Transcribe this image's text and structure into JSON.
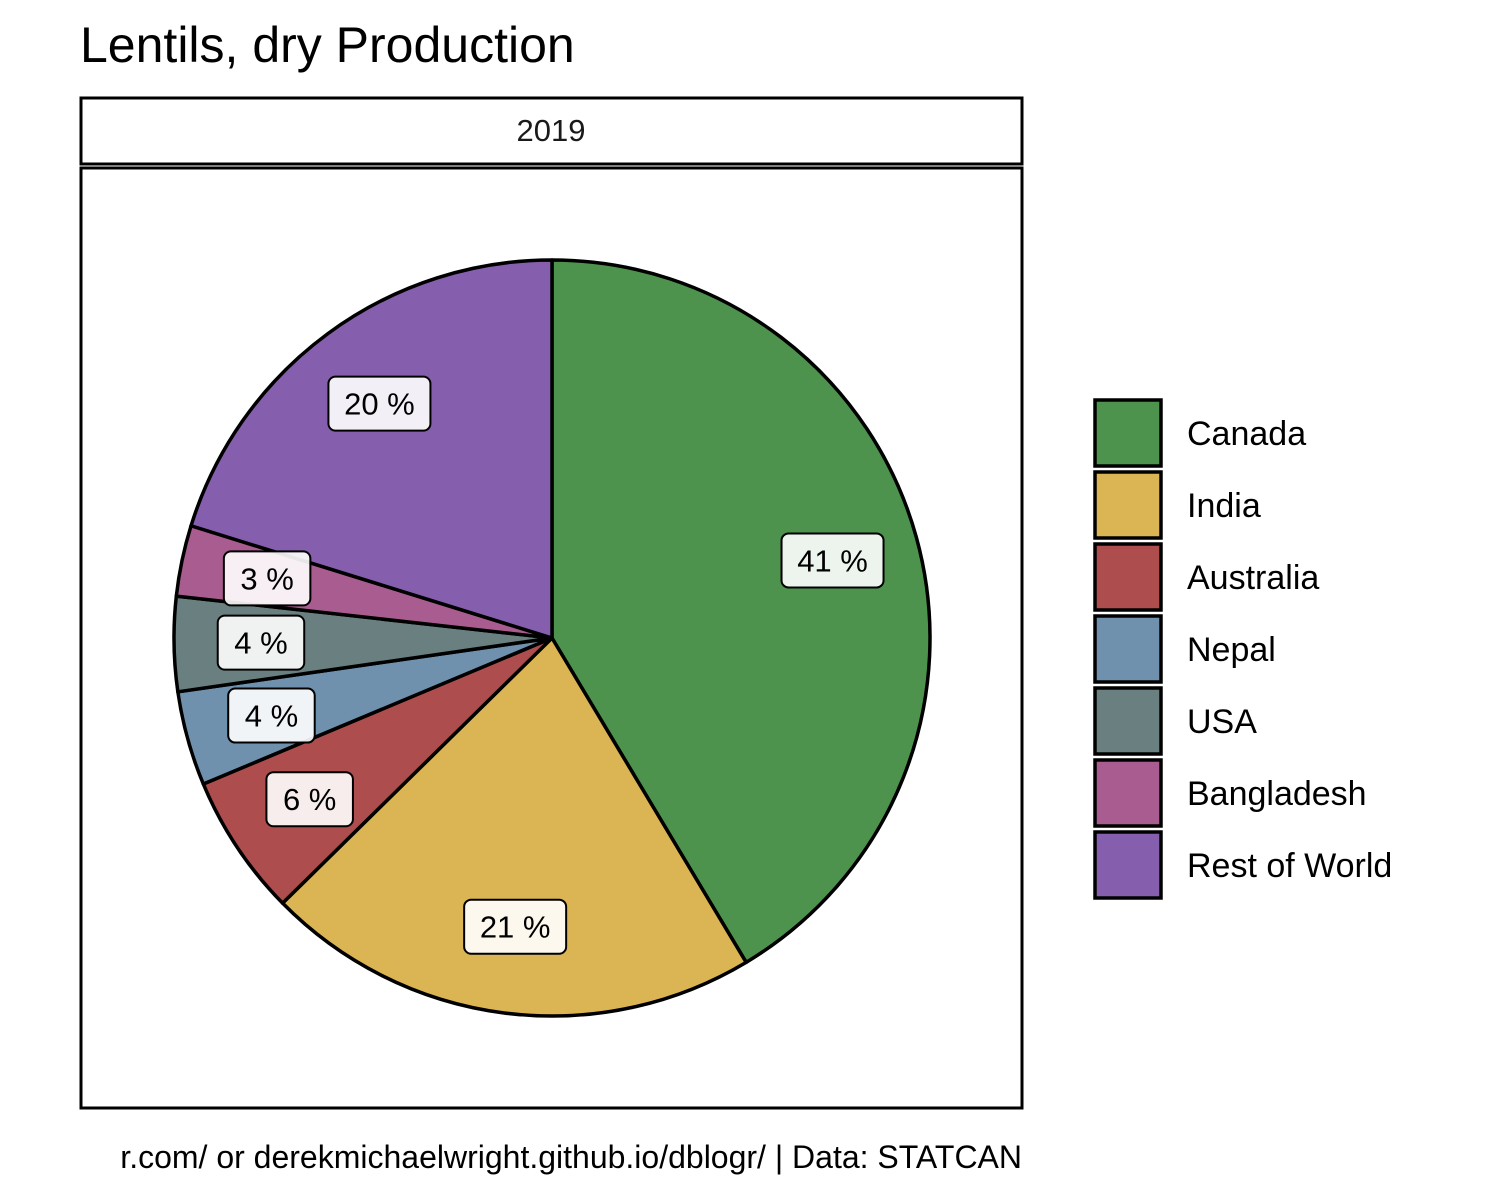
{
  "chart_data": {
    "type": "pie",
    "title": "Lentils, dry Production",
    "facet": "2019",
    "caption": "r.com/ or derekmichaelwright.github.io/dblogr/ | Data: STATCAN",
    "legend_position": "right",
    "slices": [
      {
        "name": "Canada",
        "value": 41,
        "label": "41 %",
        "color": "#4d934d"
      },
      {
        "name": "India",
        "value": 21,
        "label": "21 %",
        "color": "#dbb553"
      },
      {
        "name": "Australia",
        "value": 6,
        "label": "6 %",
        "color": "#ad4d4d"
      },
      {
        "name": "Nepal",
        "value": 4,
        "label": "4 %",
        "color": "#6f91ad"
      },
      {
        "name": "USA",
        "value": 4,
        "label": "4 %",
        "color": "#6a7f7f"
      },
      {
        "name": "Bangladesh",
        "value": 3,
        "label": "3 %",
        "color": "#a85c8f"
      },
      {
        "name": "Rest of World",
        "value": 20,
        "label": "20 %",
        "color": "#855fae"
      }
    ]
  }
}
